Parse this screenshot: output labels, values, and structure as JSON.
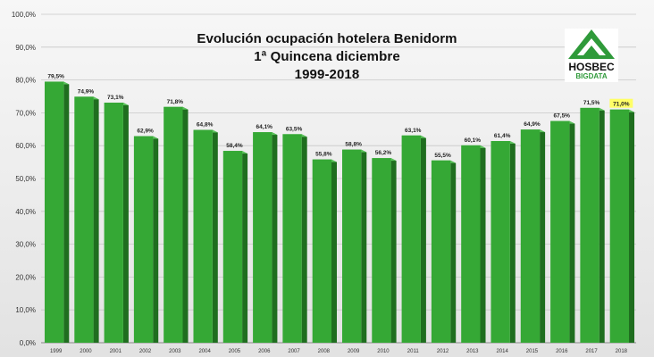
{
  "title": {
    "line1": "Evolución ocupación hotelera Benidorm",
    "line2": "1ª Quincena diciembre",
    "line3": "1999-2018"
  },
  "logo": {
    "brand": "HOSBEC",
    "sub": "BIGDATA"
  },
  "colors": {
    "bar_front": "#35a835",
    "bar_side": "#1f6e1f",
    "bar_top": "#5cc45c",
    "highlight_label_bg": "#ffff66",
    "logo_green": "#2f9a3a"
  },
  "chart_data": {
    "type": "bar",
    "title": "Evolución ocupación hotelera Benidorm 1ª Quincena diciembre 1999-2018",
    "xlabel": "",
    "ylabel": "",
    "ylim": [
      0,
      100
    ],
    "y_ticks": [
      "0,0%",
      "10,0%",
      "20,0%",
      "30,0%",
      "40,0%",
      "50,0%",
      "60,0%",
      "70,0%",
      "80,0%",
      "90,0%",
      "100,0%"
    ],
    "grid": true,
    "categories": [
      "1999",
      "2000",
      "2001",
      "2002",
      "2003",
      "2004",
      "2005",
      "2006",
      "2007",
      "2008",
      "2009",
      "2010",
      "2011",
      "2012",
      "2013",
      "2014",
      "2015",
      "2016",
      "2017",
      "2018"
    ],
    "values": [
      79.5,
      74.9,
      73.1,
      62.9,
      71.8,
      64.8,
      58.4,
      64.1,
      63.5,
      55.8,
      58.8,
      56.2,
      63.1,
      55.5,
      60.1,
      61.4,
      64.9,
      67.5,
      71.5,
      71.0
    ],
    "data_labels": [
      "79,5%",
      "74,9%",
      "73,1%",
      "62,9%",
      "71,8%",
      "64,8%",
      "58,4%",
      "64,1%",
      "63,5%",
      "55,8%",
      "58,8%",
      "56,2%",
      "63,1%",
      "55,5%",
      "60,1%",
      "61,4%",
      "64,9%",
      "67,5%",
      "71,5%",
      "71,0%"
    ],
    "highlighted_category": "2018"
  }
}
